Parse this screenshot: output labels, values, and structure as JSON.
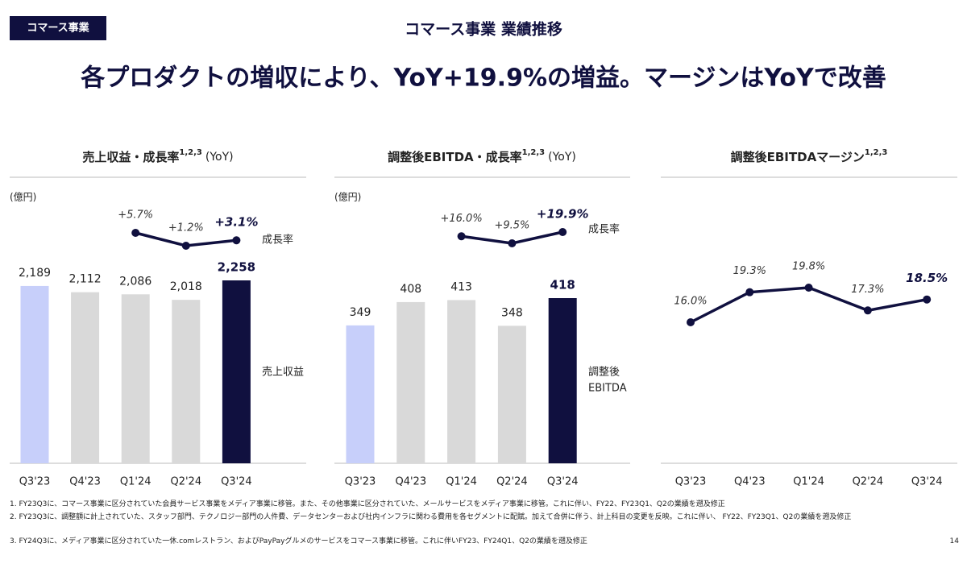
{
  "tag": "コマース事業",
  "header_title": "コマース事業 業績推移",
  "headline": "各プロダクトの増収により、YoY+19.9%の増益。マージンはYoYで改善",
  "chart_data": [
    {
      "type": "bar",
      "title": "売上収益・成長率",
      "title_note": "1,2,3",
      "title_suffix": "(YoY)",
      "unit": "(億円)",
      "categories": [
        "Q3'23",
        "Q4'23",
        "Q1'24",
        "Q2'24",
        "Q3'24"
      ],
      "series": [
        {
          "name": "売上収益",
          "values": [
            2189,
            2112,
            2086,
            2018,
            2258
          ],
          "value_labels": [
            "2,189",
            "2,112",
            "2,086",
            "2,018",
            "2,258"
          ],
          "colors": [
            "#c7cffa",
            "#d9d9d9",
            "#d9d9d9",
            "#d9d9d9",
            "#10103f"
          ]
        },
        {
          "name": "成長率",
          "type": "line",
          "color": "#10103f",
          "values": [
            null,
            null,
            5.7,
            1.2,
            3.1
          ],
          "value_labels": [
            null,
            null,
            "+5.7%",
            "+1.2%",
            "+3.1%"
          ]
        }
      ]
    },
    {
      "type": "bar",
      "title": "調整後EBITDA・成長率",
      "title_note": "1,2,3",
      "title_suffix": "(YoY)",
      "unit": "(億円)",
      "categories": [
        "Q3'23",
        "Q4'23",
        "Q1'24",
        "Q2'24",
        "Q3'24"
      ],
      "series": [
        {
          "name_lines": [
            "調整後",
            "EBITDA"
          ],
          "values": [
            349,
            408,
            413,
            348,
            418
          ],
          "value_labels": [
            "349",
            "408",
            "413",
            "348",
            "418"
          ],
          "colors": [
            "#c7cffa",
            "#d9d9d9",
            "#d9d9d9",
            "#d9d9d9",
            "#10103f"
          ]
        },
        {
          "name": "成長率",
          "type": "line",
          "color": "#10103f",
          "values": [
            null,
            null,
            16.0,
            9.5,
            19.9
          ],
          "value_labels": [
            null,
            null,
            "+16.0%",
            "+9.5%",
            "+19.9%"
          ]
        }
      ]
    },
    {
      "type": "line",
      "title": "調整後EBITDAマージン",
      "title_note": "1,2,3",
      "categories": [
        "Q3'23",
        "Q4'23",
        "Q1'24",
        "Q2'24",
        "Q3'24"
      ],
      "series": [
        {
          "color": "#10103f",
          "values": [
            16.0,
            19.3,
            19.8,
            17.3,
            18.5
          ],
          "value_labels": [
            "16.0%",
            "19.3%",
            "19.8%",
            "17.3%",
            "18.5%"
          ]
        }
      ]
    }
  ],
  "footnotes": [
    "1.  FY23Q3に、コマース事業に区分されていた会員サービス事業をメディア事業に移管。また、その他事業に区分されていた、メールサービスをメディア事業に移管。これに伴い、FY22、FY23Q1、Q2の業績を遡及修正",
    "2.  FY23Q3に、調整額に計上されていた、スタッフ部門、テクノロジー部門の人件費、データセンターおよび社内インフラに関わる費用を各セグメントに配賦。加えて合併に伴う、計上科目の変更を反映。これに伴い、 FY22、FY23Q1、Q2の業績を遡及修正",
    "3.  FY24Q3に、メディア事業に区分されていた一休.comレストラン、およびPayPayグルメのサービスをコマース事業に移管。これに伴いFY23、FY24Q1、Q2の業績を遡及修正"
  ],
  "page_number": "14"
}
